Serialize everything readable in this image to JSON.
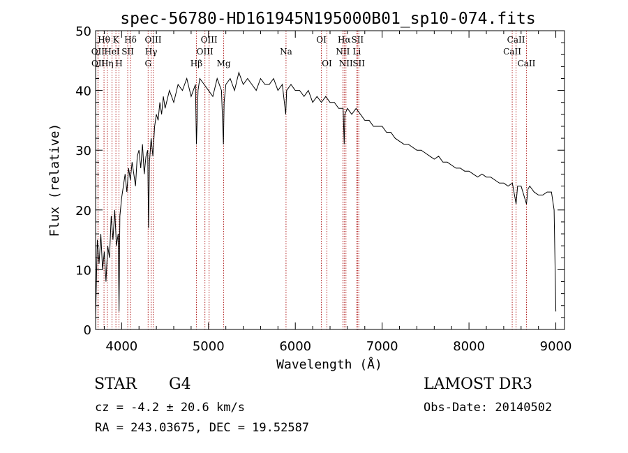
{
  "chart_data": {
    "type": "line",
    "title": "spec-56780-HD161945N195000B01_sp10-074.fits",
    "xlabel": "Wavelength (Å)",
    "ylabel": "Flux (relative)",
    "xlim": [
      3700,
      9100
    ],
    "ylim": [
      0,
      50
    ],
    "xticks": [
      4000,
      5000,
      6000,
      7000,
      8000,
      9000
    ],
    "yticks": [
      0,
      10,
      20,
      30,
      40,
      50
    ],
    "grid": false,
    "series": [
      {
        "x": [
          3700,
          3720,
          3740,
          3760,
          3780,
          3800,
          3820,
          3840,
          3860,
          3880,
          3900,
          3920,
          3940,
          3960,
          3970,
          3980,
          4000,
          4020,
          4040,
          4060,
          4080,
          4100,
          4120,
          4140,
          4160,
          4180,
          4200,
          4220,
          4240,
          4260,
          4280,
          4300,
          4310,
          4320,
          4340,
          4360,
          4380,
          4400,
          4420,
          4440,
          4460,
          4480,
          4500,
          4550,
          4600,
          4650,
          4700,
          4750,
          4800,
          4850,
          4861,
          4880,
          4900,
          4950,
          5000,
          5050,
          5100,
          5150,
          5172,
          5180,
          5200,
          5250,
          5300,
          5350,
          5400,
          5450,
          5500,
          5550,
          5600,
          5650,
          5700,
          5750,
          5800,
          5850,
          5890,
          5900,
          5950,
          6000,
          6050,
          6100,
          6150,
          6200,
          6250,
          6300,
          6350,
          6400,
          6450,
          6500,
          6550,
          6563,
          6570,
          6600,
          6650,
          6700,
          6750,
          6800,
          6850,
          6900,
          6950,
          7000,
          7050,
          7100,
          7150,
          7200,
          7250,
          7300,
          7350,
          7400,
          7450,
          7500,
          7550,
          7600,
          7650,
          7700,
          7750,
          7800,
          7850,
          7900,
          7950,
          8000,
          8050,
          8100,
          8150,
          8200,
          8250,
          8300,
          8350,
          8400,
          8450,
          8500,
          8542,
          8560,
          8600,
          8662,
          8680,
          8700,
          8750,
          8800,
          8850,
          8900,
          8950,
          8980,
          9000
        ],
        "y": [
          2,
          15,
          11,
          16,
          10,
          13,
          8,
          14,
          12,
          19,
          15,
          20,
          14,
          16,
          3,
          19,
          22,
          24,
          26,
          23,
          27,
          25,
          28,
          26,
          24,
          29,
          30,
          27,
          31,
          26,
          29,
          30,
          17,
          28,
          32,
          29,
          34,
          36,
          35,
          38,
          36,
          39,
          37,
          40,
          38,
          41,
          40,
          42,
          39,
          41,
          31,
          40,
          42,
          41,
          40,
          39,
          42,
          40,
          31,
          38,
          41,
          42,
          40,
          43,
          41,
          42,
          41,
          40,
          42,
          41,
          41,
          42,
          40,
          41,
          36,
          40,
          41,
          40,
          40,
          39,
          40,
          38,
          39,
          38,
          39,
          38,
          38,
          37,
          37,
          31,
          36,
          37,
          36,
          37,
          36,
          35,
          35,
          34,
          34,
          34,
          33,
          33,
          32,
          31.5,
          31,
          31,
          30.5,
          30,
          30,
          29.5,
          29,
          28.5,
          29,
          28,
          28,
          27.5,
          27,
          27,
          26.5,
          26.5,
          26,
          25.5,
          26,
          25.5,
          25.5,
          25,
          24.5,
          24.5,
          24,
          24.5,
          21,
          24,
          24,
          21,
          23.5,
          24,
          23,
          22.5,
          22.5,
          23,
          23,
          20,
          3
        ]
      }
    ],
    "lines": [
      {
        "label": "Hθ",
        "wl": 3797,
        "row": 0
      },
      {
        "label": "OII",
        "wl": 3727,
        "row": 1
      },
      {
        "label": "OII",
        "wl": 3729,
        "row": 2
      },
      {
        "label": "K",
        "wl": 3934,
        "row": 0
      },
      {
        "label": "HeI",
        "wl": 3889,
        "row": 1
      },
      {
        "label": "Hη",
        "wl": 3835,
        "row": 2
      },
      {
        "label": "SII",
        "wl": 4070,
        "row": 1
      },
      {
        "label": "H",
        "wl": 3969,
        "row": 2
      },
      {
        "label": "Hδ",
        "wl": 4102,
        "row": 0
      },
      {
        "label": "OIII",
        "wl": 4363,
        "row": 0
      },
      {
        "label": "Hγ",
        "wl": 4340,
        "row": 1
      },
      {
        "label": "G",
        "wl": 4305,
        "row": 2
      },
      {
        "label": "OIII",
        "wl": 5007,
        "row": 0
      },
      {
        "label": "OIII",
        "wl": 4959,
        "row": 1
      },
      {
        "label": "Hβ",
        "wl": 4861,
        "row": 2
      },
      {
        "label": "Mg",
        "wl": 5175,
        "row": 2
      },
      {
        "label": "Na",
        "wl": 5893,
        "row": 1
      },
      {
        "label": "OI",
        "wl": 6300,
        "row": 0
      },
      {
        "label": "OI",
        "wl": 6364,
        "row": 2
      },
      {
        "label": "Hα",
        "wl": 6563,
        "row": 0
      },
      {
        "label": "SII",
        "wl": 6716,
        "row": 0
      },
      {
        "label": "NII",
        "wl": 6548,
        "row": 1
      },
      {
        "label": "Li",
        "wl": 6708,
        "row": 1
      },
      {
        "label": "NII",
        "wl": 6583,
        "row": 2
      },
      {
        "label": "SII",
        "wl": 6731,
        "row": 2
      },
      {
        "label": "CaII",
        "wl": 8542,
        "row": 0
      },
      {
        "label": "CaII",
        "wl": 8498,
        "row": 1
      },
      {
        "label": "CaII",
        "wl": 8662,
        "row": 2
      }
    ]
  },
  "info": {
    "object_class": "STAR",
    "subclass": "G4",
    "survey": "LAMOST DR3",
    "redshift": "cz = -4.2 ± 20.6 km/s",
    "obs_date": "Obs-Date: 20140502",
    "coords": "RA = 243.03675, DEC =  19.52587"
  },
  "colors": {
    "spectrum": "#000000",
    "line_markers": "#b22222",
    "axes": "#000000"
  }
}
